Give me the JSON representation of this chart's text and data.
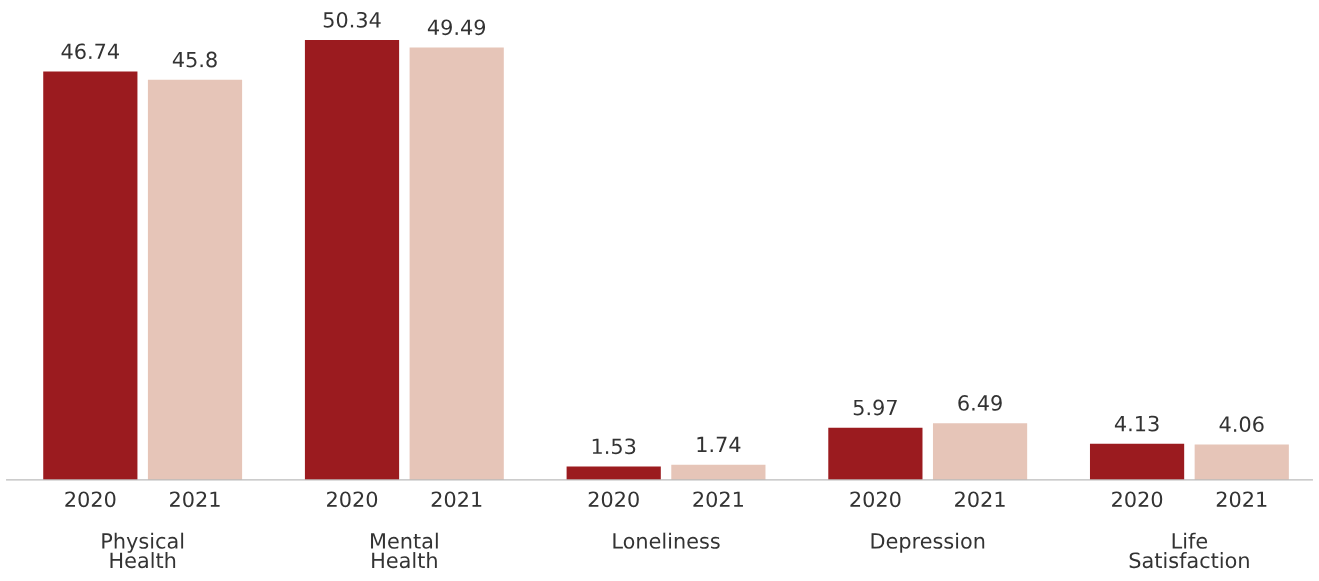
{
  "chart_data": {
    "type": "bar",
    "categories": [
      "Physical\nHealth",
      "Mental\nHealth",
      "Loneliness",
      "Depression",
      "Life\nSatisfaction"
    ],
    "series": [
      {
        "name": "2020",
        "color": "#9b1b1f",
        "values": [
          46.74,
          50.34,
          1.53,
          5.97,
          4.13
        ]
      },
      {
        "name": "2021",
        "color": "#e6c5b8",
        "values": [
          45.8,
          49.49,
          1.74,
          6.49,
          4.06
        ]
      }
    ],
    "data_labels": true
  }
}
